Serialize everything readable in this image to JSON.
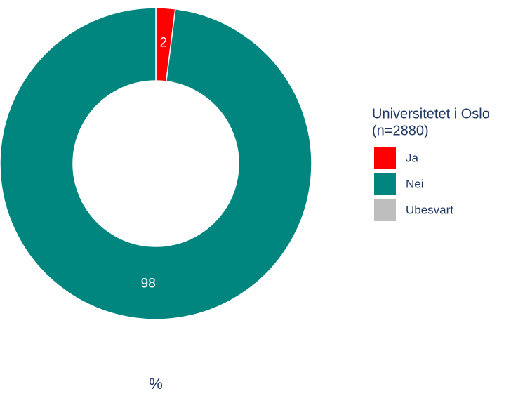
{
  "chart_data": {
    "type": "donut",
    "legend_title": [
      "Universitetet i Oslo",
      "(n=2880)"
    ],
    "categories": [
      "Ja",
      "Nei",
      "Ubesvart"
    ],
    "values": [
      2,
      98,
      0
    ],
    "colors": [
      "#ff0000",
      "#00857f",
      "#bebebe"
    ],
    "xlabel": "%",
    "legend": "right"
  }
}
